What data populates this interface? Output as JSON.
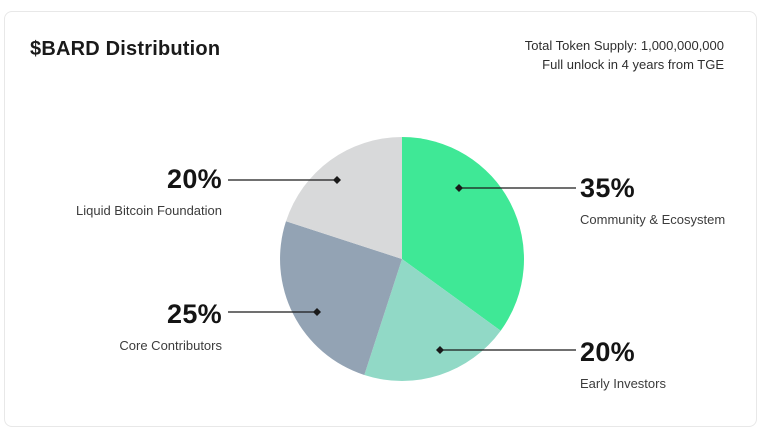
{
  "header": {
    "title": "$BARD Distribution",
    "total_supply": "Total Token Supply: 1,000,000,000",
    "unlock_note": "Full unlock in 4 years from TGE"
  },
  "chart_data": {
    "type": "pie",
    "title": "$BARD Distribution",
    "direction": "clockwise",
    "start_angle_deg": 0,
    "total": 100,
    "segments": [
      {
        "label": "Community & Ecosystem",
        "value": 35,
        "pct_label": "35%",
        "color": "#3FE896"
      },
      {
        "label": "Early Investors",
        "value": 20,
        "pct_label": "20%",
        "color": "#91D9C6"
      },
      {
        "label": "Core Contributors",
        "value": 25,
        "pct_label": "25%",
        "color": "#93A3B4"
      },
      {
        "label": "Liquid Bitcoin Foundation",
        "value": 20,
        "pct_label": "20%",
        "color": "#D8D9DA"
      }
    ],
    "annotations": [
      "Total Token Supply: 1,000,000,000",
      "Full unlock in 4 years from TGE"
    ],
    "legend_position": "callout-labels",
    "grid": false
  },
  "colors": {
    "line": "#1a1a1a",
    "card_border": "#e8e8e8",
    "text_primary": "#141414",
    "text_secondary": "#3c3c3c"
  }
}
